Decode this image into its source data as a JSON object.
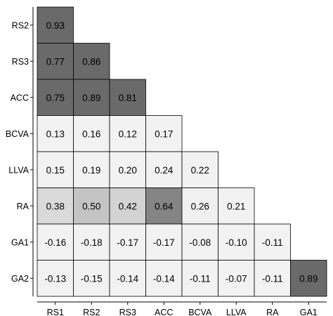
{
  "chart_data": {
    "type": "heatmap",
    "title": "",
    "xlabel": "",
    "ylabel": "",
    "x_labels": [
      "RS1",
      "RS2",
      "RS3",
      "ACC",
      "BCVA",
      "LLVA",
      "RA",
      "GA1"
    ],
    "y_labels": [
      "RS2",
      "RS3",
      "ACC",
      "BCVA",
      "LLVA",
      "RA",
      "GA1",
      "GA2"
    ],
    "values": [
      [
        0.93,
        null,
        null,
        null,
        null,
        null,
        null,
        null
      ],
      [
        0.77,
        0.86,
        null,
        null,
        null,
        null,
        null,
        null
      ],
      [
        0.75,
        0.89,
        0.81,
        null,
        null,
        null,
        null,
        null
      ],
      [
        0.13,
        0.16,
        0.12,
        0.17,
        null,
        null,
        null,
        null
      ],
      [
        0.15,
        0.19,
        0.2,
        0.24,
        0.22,
        null,
        null,
        null
      ],
      [
        0.38,
        0.5,
        0.42,
        0.64,
        0.26,
        0.21,
        null,
        null
      ],
      [
        -0.16,
        -0.18,
        -0.17,
        -0.17,
        -0.08,
        -0.1,
        -0.11,
        null
      ],
      [
        -0.13,
        -0.15,
        -0.14,
        -0.14,
        -0.11,
        -0.07,
        -0.11,
        0.89
      ]
    ],
    "value_labels": [
      [
        "0.93"
      ],
      [
        "0.77",
        "0.86"
      ],
      [
        "0.75",
        "0.89",
        "0.81"
      ],
      [
        "0.13",
        "0.16",
        "0.12",
        "0.17"
      ],
      [
        "0.15",
        "0.19",
        "0.20",
        "0.24",
        "0.22"
      ],
      [
        "0.38",
        "0.50",
        "0.42",
        "0.64",
        "0.26",
        "0.21"
      ],
      [
        "-0.16",
        "-0.18",
        "-0.17",
        "-0.17",
        "-0.08",
        "-0.10",
        "-0.11"
      ],
      [
        "-0.13",
        "-0.15",
        "-0.14",
        "-0.14",
        "-0.11",
        "-0.07",
        "-0.11",
        "0.89"
      ]
    ],
    "layout": "lower-triangle",
    "grid": false,
    "legend": "none",
    "colors": {
      "low": "#f2f2f2",
      "mid": "#c4c4c4",
      "high": "#6a6a6a",
      "cell_border": "#000000",
      "axis": "#000000"
    }
  }
}
